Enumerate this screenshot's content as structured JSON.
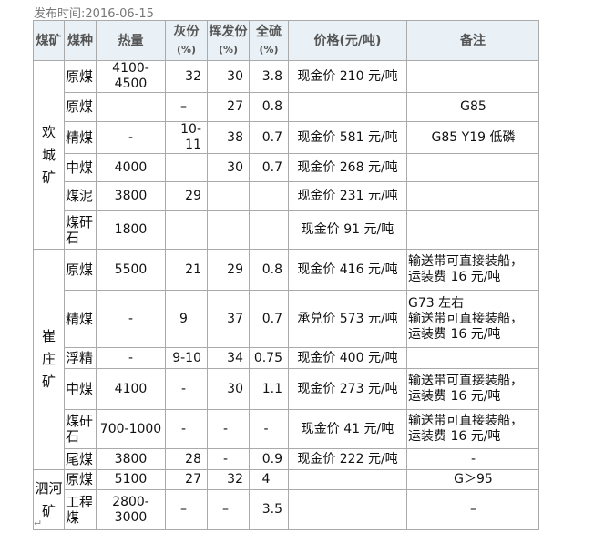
{
  "publish": {
    "label": "发布时间:",
    "date": "2016-06-15"
  },
  "headers": {
    "mine": "煤矿",
    "type": "煤种",
    "heat": "热量",
    "ash": "灰份",
    "ash_unit": "(%)",
    "volatile": "挥发份",
    "volatile_unit": "(%)",
    "sulfur": "全硫",
    "sulfur_unit": "(%)",
    "price": "价格(元/吨)",
    "note": "备注"
  },
  "mines": [
    {
      "name": "欢\n城\n矿",
      "rows": [
        {
          "type": "原煤",
          "heat": "4100-4500",
          "ash": "32",
          "volatile": "30",
          "sulfur": "3.8",
          "price": "现金价 210 元/吨",
          "note": ""
        },
        {
          "type": "原煤",
          "heat": "",
          "ash": "–",
          "volatile": "27",
          "sulfur": "0.8",
          "price": "",
          "note": "G85"
        },
        {
          "type": "精煤",
          "heat": "-",
          "ash": "10-11",
          "volatile": "38",
          "sulfur": "0.7",
          "price": "现金价 581 元/吨",
          "note": "G85  Y19  低磷"
        },
        {
          "type": "中煤",
          "heat": "4000",
          "ash": "",
          "volatile": "30",
          "sulfur": "0.7",
          "price": "现金价 268 元/吨",
          "note": ""
        },
        {
          "type": "煤泥",
          "heat": "3800",
          "ash": "29",
          "volatile": "",
          "sulfur": "",
          "price": "现金价 231 元/吨",
          "note": ""
        },
        {
          "type": "煤矸石",
          "heat": "1800",
          "ash": "",
          "volatile": "",
          "sulfur": "",
          "price": "现金价 91 元/吨",
          "note": ""
        }
      ]
    },
    {
      "name": "崔\n庄\n矿",
      "rows": [
        {
          "type": "原煤",
          "heat": "5500",
          "ash": "21",
          "volatile": "29",
          "sulfur": "0.8",
          "price": "现金价 416 元/吨",
          "note": "输送带可直接装船，\n运装费 16 元/吨"
        },
        {
          "type": "精煤",
          "heat": "-",
          "ash": "9",
          "volatile": "37",
          "sulfur": "0.7",
          "price": "承兑价 573 元/吨",
          "note": "      G73 左右\n输送带可直接装船，\n运装费 16 元/吨"
        },
        {
          "type": "浮精",
          "heat": "-",
          "ash": "9-10",
          "volatile": "34",
          "sulfur": "0.75",
          "price": "现金价 400 元/吨",
          "note": ""
        },
        {
          "type": "中煤",
          "heat": "4100",
          "ash": "-",
          "volatile": "30",
          "sulfur": "1.1",
          "price": "现金价 273 元/吨",
          "note": "输送带可直接装船，\n运装费 16 元/吨"
        },
        {
          "type": "煤矸石",
          "heat": "700-1000",
          "ash": "-",
          "volatile": "-",
          "sulfur": "-",
          "price": "现金价 41 元/吨",
          "note": "输送带可直接装船，\n    运装费 16 元/吨"
        },
        {
          "type": "尾煤",
          "heat": "3800",
          "ash": "28",
          "volatile": "-",
          "sulfur": "0.9",
          "price": "现金价 222 元/吨",
          "note": "-"
        }
      ]
    },
    {
      "name": "泗河\n矿",
      "rows": [
        {
          "type": "原煤",
          "heat": "5100",
          "ash": "27",
          "volatile": "32",
          "sulfur": "4",
          "price": "",
          "note": "G＞95"
        },
        {
          "type": "工程煤",
          "heat": "2800-3000",
          "ash": "–",
          "volatile": "–",
          "sulfur": "3.5",
          "price": "",
          "note": "–"
        }
      ]
    }
  ]
}
